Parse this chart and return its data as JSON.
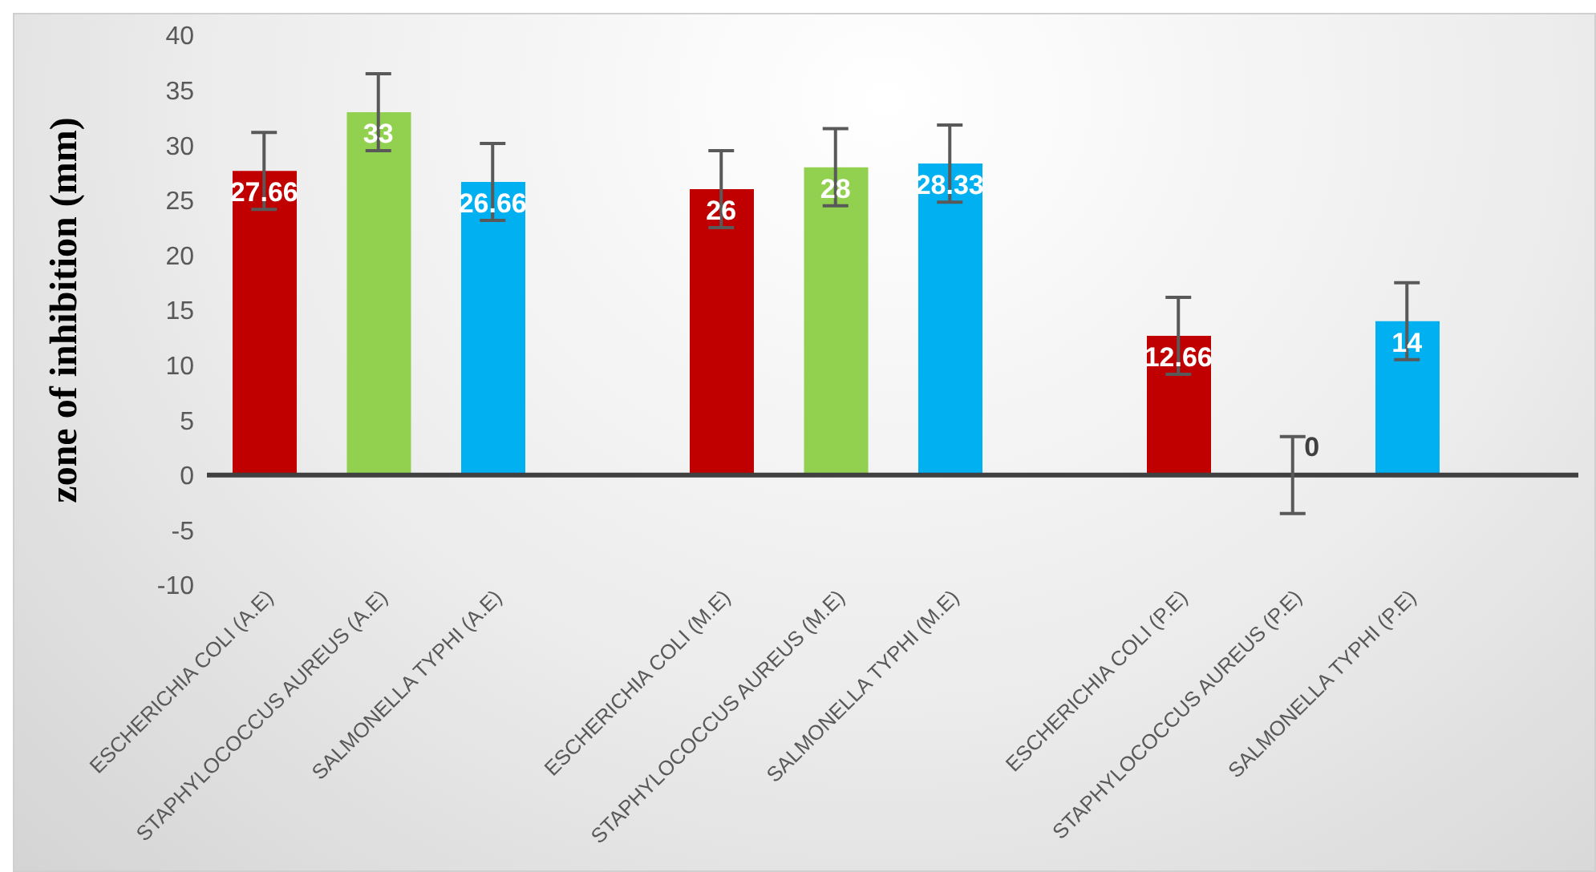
{
  "chart_data": {
    "type": "bar",
    "ylabel": "zone of inhibition (mm)",
    "categories": [
      "ESCHERICHIA COLI (A.E)",
      "STAPHYLOCOCCUS AUREUS (A.E)",
      "SALMONELLA TYPHI (A.E)",
      null,
      "ESCHERICHIA COLI (M.E)",
      "STAPHYLOCOCCUS AUREUS (M.E)",
      "SALMONELLA TYPHI (M.E)",
      null,
      "ESCHERICHIA COLI (P.E)",
      "STAPHYLOCOCCUS AUREUS (P.E)",
      "SALMONELLA TYPHI (P.E)",
      null
    ],
    "values": [
      27.66,
      33,
      26.66,
      null,
      26,
      28,
      28.33,
      null,
      12.66,
      0,
      14,
      null
    ],
    "colors": [
      "#c00000",
      "#92d050",
      "#00b0f0",
      null,
      "#c00000",
      "#92d050",
      "#00b0f0",
      null,
      "#c00000",
      "#92d050",
      "#00b0f0",
      null
    ],
    "errors": [
      3.5,
      3.5,
      3.5,
      null,
      3.5,
      3.5,
      3.5,
      null,
      3.5,
      3.5,
      3.5,
      null
    ],
    "data_labels": true,
    "legend": false,
    "ylim": [
      -10,
      40
    ],
    "yticks": [
      -10,
      -5,
      0,
      5,
      10,
      15,
      20,
      25,
      30,
      35,
      40
    ]
  }
}
